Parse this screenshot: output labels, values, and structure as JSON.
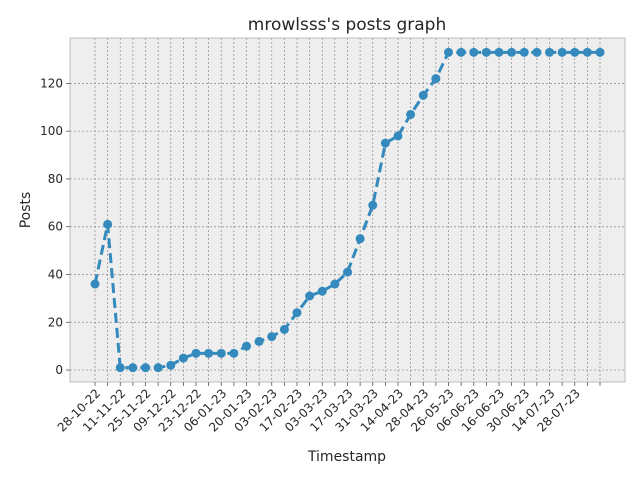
{
  "chart_data": {
    "type": "line",
    "title": "mrowlsss's posts graph",
    "xlabel": "Timestamp",
    "ylabel": "Posts",
    "ylim": [
      -5,
      139
    ],
    "yticks": [
      0,
      20,
      40,
      60,
      80,
      100,
      120
    ],
    "grid": true,
    "legend": "none",
    "x_tick_labels": [
      "28-10-22",
      "11-11-22",
      "25-11-22",
      "09-12-22",
      "23-12-22",
      "06-01-23",
      "20-01-23",
      "03-02-23",
      "17-02-23",
      "03-03-23",
      "17-03-23",
      "31-03-23",
      "14-04-23",
      "28-04-23",
      "26-05-23",
      "06-06-23",
      "16-06-23",
      "30-06-23",
      "14-07-23",
      "28-07-23"
    ],
    "series": [
      {
        "values": [
          36,
          61,
          1,
          1,
          1,
          1,
          2,
          5,
          7,
          7,
          7,
          7,
          10,
          12,
          14,
          17,
          24,
          31,
          33,
          36,
          41,
          55,
          69,
          95,
          98,
          107,
          115,
          122,
          133,
          133,
          133,
          133,
          133,
          133,
          133,
          133,
          133,
          133,
          133,
          133,
          133
        ],
        "color": "#348abd",
        "line_style": "dashed",
        "marker": "circle"
      }
    ]
  }
}
